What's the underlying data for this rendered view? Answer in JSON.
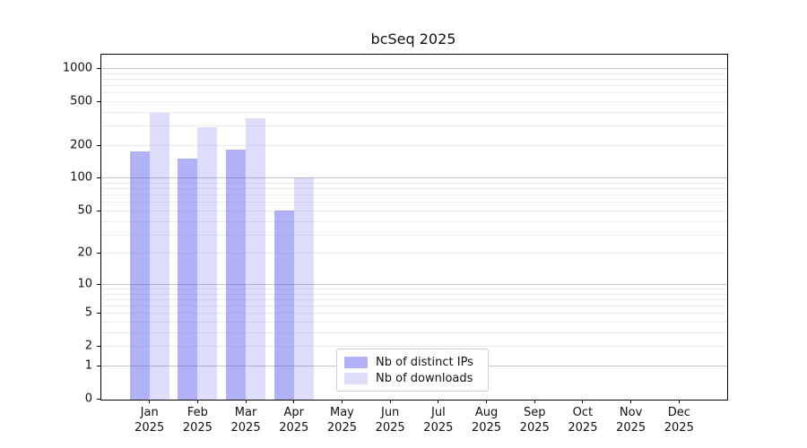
{
  "title": "bcSeq 2025",
  "year": "2025",
  "chart_data": {
    "type": "bar",
    "title": "bcSeq 2025",
    "xlabel": "",
    "ylabel": "",
    "y_scale": "log10(value+1)",
    "ylim": [
      0,
      1300
    ],
    "grid": "both",
    "legend_position": "lower-center-inside",
    "categories": [
      "Jan 2025",
      "Feb 2025",
      "Mar 2025",
      "Apr 2025",
      "May 2025",
      "Jun 2025",
      "Jul 2025",
      "Aug 2025",
      "Sep 2025",
      "Oct 2025",
      "Nov 2025",
      "Dec 2025"
    ],
    "months": [
      "Jan",
      "Feb",
      "Mar",
      "Apr",
      "May",
      "Jun",
      "Jul",
      "Aug",
      "Sep",
      "Oct",
      "Nov",
      "Dec"
    ],
    "y_ticks": [
      0,
      1,
      2,
      5,
      10,
      20,
      50,
      100,
      200,
      500,
      1000
    ],
    "series": [
      {
        "name": "Nb of distinct IPs",
        "color": "rgba(70,70,235,0.42)",
        "color_hex_on_white": "#b1b1f6",
        "values": [
          175,
          150,
          180,
          50,
          0,
          0,
          0,
          0,
          0,
          0,
          0,
          0
        ]
      },
      {
        "name": "Nb of downloads",
        "color": "rgba(70,70,235,0.18)",
        "color_hex_on_white": "#dedefb",
        "values": [
          390,
          290,
          350,
          100,
          0,
          0,
          0,
          0,
          0,
          0,
          0,
          0
        ]
      }
    ],
    "colors": {
      "axis": "#000000",
      "grid_major": "#c6c6c6",
      "grid_minor": "#ececec",
      "background": "#ffffff",
      "text": "#111111"
    }
  }
}
